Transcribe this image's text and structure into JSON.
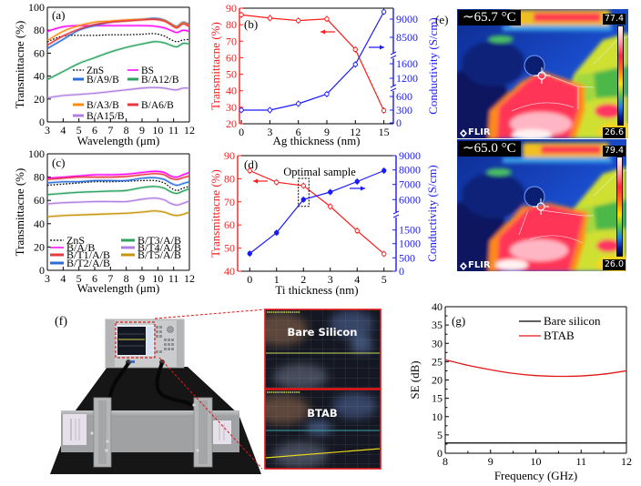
{
  "thermal": {
    "panel_label": "(e)",
    "images": [
      {
        "spot_temp": "∼65.7 °C",
        "max": "77.4",
        "min": "26.6",
        "logo": "FLIR"
      },
      {
        "spot_temp": "∼65.0 °C",
        "max": "79.4",
        "min": "26.0",
        "logo": "FLIR"
      }
    ]
  },
  "setup_photo": {
    "panel_label": "(f)",
    "inset_labels": [
      "Bare Silicon",
      "BTAB"
    ]
  },
  "chart_data": [
    {
      "id": "a",
      "panel_label": "(a)",
      "type": "line",
      "xlabel": "Wavelength (μm)",
      "ylabel": "Transmittacne (%)",
      "xlim": [
        3,
        12
      ],
      "ylim": [
        0,
        100
      ],
      "xticks": [
        3,
        4,
        5,
        6,
        7,
        8,
        9,
        10,
        11,
        12
      ],
      "yticks": [
        0,
        20,
        40,
        60,
        80,
        100
      ],
      "grid": false,
      "legend_position": "center-left",
      "x": [
        3,
        4,
        5,
        6,
        7,
        8,
        9,
        9.8,
        10.4,
        10.8,
        11.2,
        11.6,
        12
      ],
      "series": [
        {
          "name": "ZnS",
          "color": "#000000",
          "style": "dotted",
          "values": [
            70,
            75,
            75.5,
            75.5,
            76,
            76,
            76.5,
            77,
            75,
            72,
            70,
            71.5,
            72
          ]
        },
        {
          "name": "BS",
          "color": "#ff00ff",
          "style": "solid",
          "values": [
            79,
            83,
            84,
            84,
            84,
            84,
            84,
            83.5,
            82,
            80,
            78,
            80,
            79
          ]
        },
        {
          "name": "B/A9/B",
          "color": "#2a6ed8",
          "style": "solid",
          "values": [
            64,
            72,
            80,
            84,
            87,
            88.5,
            89.5,
            90.5,
            89,
            86,
            83.5,
            87,
            85
          ]
        },
        {
          "name": "B/A12/B",
          "color": "#2ea360",
          "style": "solid",
          "values": [
            37,
            44,
            51,
            56,
            61,
            65,
            68,
            70,
            69,
            67,
            65.5,
            68.5,
            68
          ]
        },
        {
          "name": "B/A3/B",
          "color": "#ff8a10",
          "style": "solid",
          "values": [
            71,
            79,
            84,
            87,
            88,
            89,
            89.5,
            89.5,
            88.5,
            85.5,
            83,
            86.5,
            84
          ]
        },
        {
          "name": "B/A6/B",
          "color": "#e8393f",
          "style": "solid",
          "values": [
            67,
            75,
            81,
            85,
            87,
            88,
            89,
            89.5,
            88,
            85,
            82,
            85.5,
            83
          ]
        },
        {
          "name": "B/A15/B",
          "color": "#b07fe0",
          "style": "solid",
          "values": [
            21,
            23,
            24,
            25,
            26.5,
            28,
            29.5,
            30,
            29.5,
            28.5,
            28,
            29.5,
            29.5
          ]
        }
      ]
    },
    {
      "id": "b",
      "panel_label": "(b)",
      "type": "line",
      "xlabel": "Ag thickness (nm)",
      "ylabel": "Transmittacne (%)",
      "y2label": "Conductivity (S/cm)",
      "xlim": [
        -0.2,
        16
      ],
      "ylim": [
        20,
        90
      ],
      "xticks": [
        0,
        3,
        6,
        9,
        12,
        15
      ],
      "yticks": [
        20,
        30,
        40,
        50,
        60,
        70,
        80,
        90
      ],
      "y2ticks": [
        0,
        300,
        600,
        1200,
        1600,
        8500,
        9000
      ],
      "y2_axis_breaks": 2,
      "left_axis_color": "#ff1a1a",
      "right_axis_color": "#1a1aff",
      "grid": false,
      "x": [
        0,
        3,
        6,
        9,
        12,
        15
      ],
      "series": [
        {
          "axis": "left",
          "color": "#ff1a1a",
          "values": [
            86,
            84,
            82.5,
            83.5,
            65,
            28
          ]
        },
        {
          "axis": "right",
          "color": "#1a1aff",
          "values": [
            300,
            300,
            440,
            680,
            1580,
            9200
          ]
        }
      ],
      "arrows": [
        {
          "direction": "left",
          "refers_to": "left axis"
        },
        {
          "direction": "right",
          "refers_to": "right axis"
        }
      ]
    },
    {
      "id": "c",
      "panel_label": "(c)",
      "type": "line",
      "xlabel": "Wavelength (μm)",
      "ylabel": "Transmittacne (%)",
      "xlim": [
        3,
        12
      ],
      "ylim": [
        0,
        100
      ],
      "xticks": [
        3,
        4,
        5,
        6,
        7,
        8,
        9,
        10,
        11,
        12
      ],
      "yticks": [
        0,
        20,
        40,
        60,
        80,
        100
      ],
      "grid": false,
      "legend_position": "bottom",
      "x": [
        3,
        4,
        5,
        6,
        7,
        8,
        9,
        9.8,
        10.4,
        10.8,
        11.2,
        11.6,
        12
      ],
      "series": [
        {
          "name": "ZnS",
          "color": "#000000",
          "style": "dotted",
          "values": [
            73,
            74,
            75,
            76,
            76,
            76.5,
            77,
            77,
            75,
            71,
            68.5,
            70.5,
            72
          ]
        },
        {
          "name": "B/A/B",
          "color": "#ff00ff",
          "style": "solid",
          "values": [
            79,
            80,
            81,
            82,
            82,
            82.5,
            84,
            85,
            84,
            81,
            80,
            82,
            84
          ]
        },
        {
          "name": "B/T1/A/B",
          "color": "#e8393f",
          "style": "solid",
          "values": [
            78,
            79,
            80,
            80,
            80,
            80.5,
            82,
            83,
            82,
            79,
            78,
            79.5,
            81
          ]
        },
        {
          "name": "B/T2/A/B",
          "color": "#2a6ed8",
          "style": "solid",
          "values": [
            75,
            76,
            76,
            77,
            77,
            77,
            79,
            79.5,
            78,
            75,
            73,
            74.5,
            76
          ]
        },
        {
          "name": "B/T3/A/B",
          "color": "#2ea360",
          "style": "solid",
          "values": [
            65,
            66,
            67,
            67.5,
            68,
            68.5,
            71,
            72,
            70.5,
            67.5,
            66,
            68,
            70
          ]
        },
        {
          "name": "B/T4/A/B",
          "color": "#b07fe0",
          "style": "solid",
          "values": [
            57,
            58,
            58.5,
            59,
            59,
            59,
            61,
            62,
            60.5,
            57.5,
            56,
            57.5,
            59.5
          ]
        },
        {
          "name": "B/T5/A/B",
          "color": "#c8960a",
          "style": "solid",
          "values": [
            46,
            47,
            47.5,
            48,
            48.5,
            49,
            50,
            51,
            50,
            48,
            47,
            48,
            50
          ]
        }
      ]
    },
    {
      "id": "d",
      "panel_label": "(d)",
      "type": "line",
      "xlabel": "Ti thickness (nm)",
      "ylabel": "Transmittacne (%)",
      "y2label": "Conductivity (S/cm)",
      "xlim": [
        -0.45,
        5.45
      ],
      "ylim": [
        40,
        90
      ],
      "xticks": [
        0,
        1,
        2,
        3,
        4,
        5
      ],
      "yticks": [
        40,
        50,
        60,
        70,
        80,
        90
      ],
      "y2ticks": [
        0,
        500,
        1000,
        1500,
        6000,
        7000,
        8000,
        9000
      ],
      "y2_axis_breaks": 1,
      "left_axis_color": "#ff1a1a",
      "right_axis_color": "#1a1aff",
      "grid": false,
      "x": [
        0,
        1,
        2,
        3,
        4,
        5
      ],
      "series": [
        {
          "axis": "left",
          "color": "#ff1a1a",
          "values": [
            83.5,
            78.5,
            77,
            68,
            57.5,
            47.5
          ]
        },
        {
          "axis": "right",
          "color": "#1a1aff",
          "values": [
            650,
            1400,
            6000,
            6500,
            7200,
            7950
          ]
        }
      ],
      "arrows": [
        {
          "direction": "left",
          "refers_to": "left axis"
        },
        {
          "direction": "right",
          "refers_to": "right axis"
        }
      ],
      "annotations": [
        {
          "text": "Optimal sample",
          "highlight_x": 2
        }
      ]
    },
    {
      "id": "g",
      "panel_label": "(g)",
      "type": "line",
      "xlabel": "Frequency (GHz)",
      "ylabel": "SE (dB)",
      "xlim": [
        8,
        12
      ],
      "ylim": [
        0,
        40
      ],
      "xticks": [
        8,
        9,
        10,
        11,
        12
      ],
      "yticks": [
        0,
        5,
        10,
        15,
        20,
        25,
        30,
        35,
        40
      ],
      "grid": false,
      "legend_position": "top-right",
      "x": [
        8,
        8.5,
        9,
        9.5,
        10,
        10.5,
        11,
        11.5,
        12
      ],
      "series": [
        {
          "name": "Bare silicon",
          "color": "#000000",
          "style": "solid",
          "values": [
            2.8,
            2.8,
            2.8,
            2.8,
            2.8,
            2.8,
            2.8,
            2.8,
            2.8
          ]
        },
        {
          "name": "BTAB",
          "color": "#e01818",
          "style": "solid",
          "values": [
            25.5,
            24,
            22.8,
            21.8,
            21.2,
            21,
            21.1,
            21.6,
            22.5
          ]
        }
      ]
    }
  ]
}
